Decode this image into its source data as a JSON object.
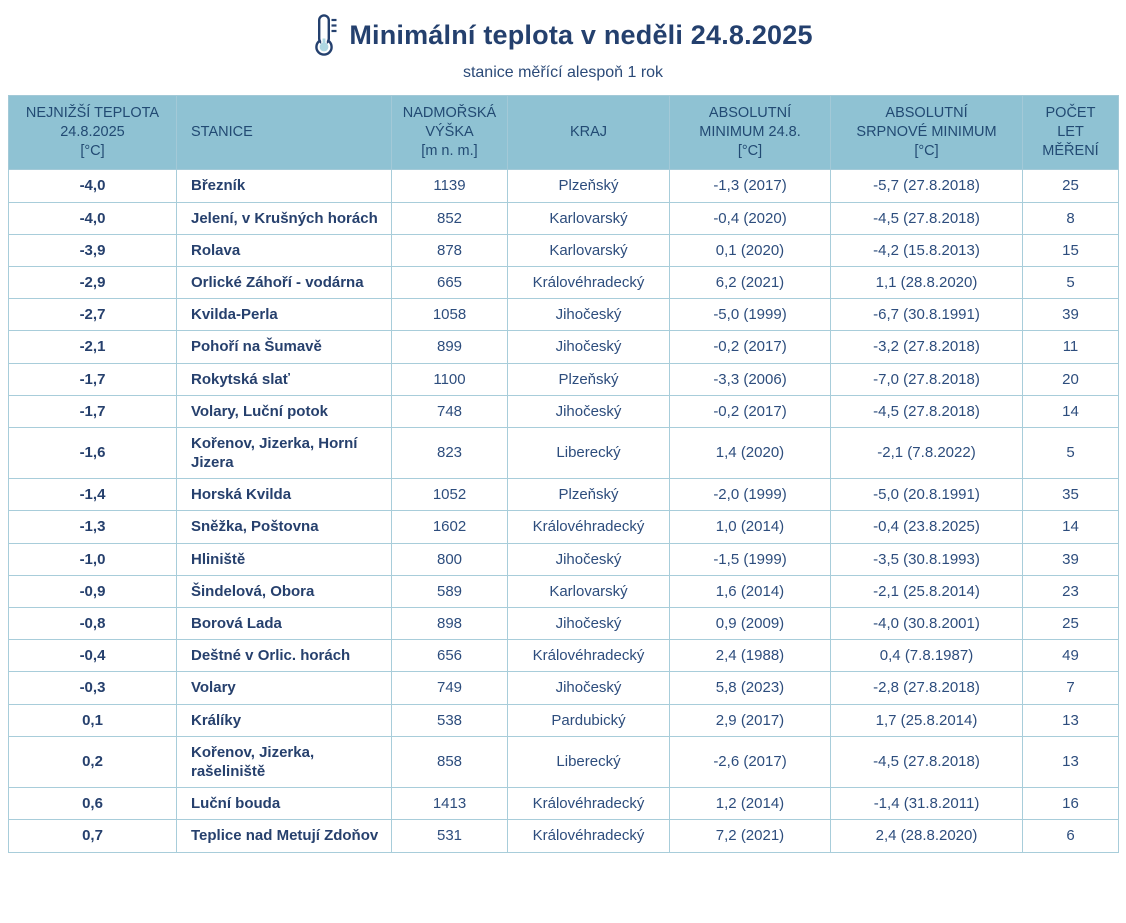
{
  "page": {
    "title": "Minimální teplota v neděli 24.8.2025",
    "subtitle": "stanice měřící alespoň 1 rok",
    "icon": "thermometer-icon"
  },
  "colors": {
    "title_text": "#24406e",
    "header_background": "#8fc2d3",
    "header_text": "#224a73",
    "cell_text": "#2d4d7d",
    "bold_cell_text": "#26406d",
    "table_border": "#a8cdda",
    "thermometer_bulb": "#aed7e2"
  },
  "chart_data": {
    "type": "table",
    "title": "Minimální teplota v neděli 24.8.2025",
    "subtitle": "stanice měřící alespoň 1 rok",
    "columns": [
      "NEJNIŽŠÍ TEPLOTA\n24.8.2025\n[°C]",
      "STANICE",
      "NADMOŘSKÁ\nVÝŠKA\n[m n. m.]",
      "KRAJ",
      "ABSOLUTNÍ\nMINIMUM 24.8.\n[°C]",
      "ABSOLUTNÍ\nSRPNOVÉ MINIMUM\n[°C]",
      "POČET\nLET\nMĚŘENÍ"
    ],
    "rows": [
      {
        "temp": "-4,0",
        "station": "Březník",
        "altitude": "1139",
        "region": "Plzeňský",
        "abs_min_248": "-1,3 (2017)",
        "abs_aug_min": "-5,7 (27.8.2018)",
        "years": "25"
      },
      {
        "temp": "-4,0",
        "station": "Jelení, v Krušných horách",
        "altitude": "852",
        "region": "Karlovarský",
        "abs_min_248": "-0,4 (2020)",
        "abs_aug_min": "-4,5 (27.8.2018)",
        "years": "8"
      },
      {
        "temp": "-3,9",
        "station": "Rolava",
        "altitude": "878",
        "region": "Karlovarský",
        "abs_min_248": "0,1 (2020)",
        "abs_aug_min": "-4,2 (15.8.2013)",
        "years": "15"
      },
      {
        "temp": "-2,9",
        "station": "Orlické Záhoří - vodárna",
        "altitude": "665",
        "region": "Královéhradecký",
        "abs_min_248": "6,2 (2021)",
        "abs_aug_min": "1,1 (28.8.2020)",
        "years": "5"
      },
      {
        "temp": "-2,7",
        "station": "Kvilda-Perla",
        "altitude": "1058",
        "region": "Jihočeský",
        "abs_min_248": "-5,0 (1999)",
        "abs_aug_min": "-6,7 (30.8.1991)",
        "years": "39"
      },
      {
        "temp": "-2,1",
        "station": "Pohoří na Šumavě",
        "altitude": "899",
        "region": "Jihočeský",
        "abs_min_248": "-0,2 (2017)",
        "abs_aug_min": "-3,2 (27.8.2018)",
        "years": "11"
      },
      {
        "temp": "-1,7",
        "station": "Rokytská slať",
        "altitude": "1100",
        "region": "Plzeňský",
        "abs_min_248": "-3,3 (2006)",
        "abs_aug_min": "-7,0 (27.8.2018)",
        "years": "20"
      },
      {
        "temp": "-1,7",
        "station": "Volary, Luční potok",
        "altitude": "748",
        "region": "Jihočeský",
        "abs_min_248": "-0,2 (2017)",
        "abs_aug_min": "-4,5 (27.8.2018)",
        "years": "14"
      },
      {
        "temp": "-1,6",
        "station": "Kořenov, Jizerka, Horní Jizera",
        "altitude": "823",
        "region": "Liberecký",
        "abs_min_248": "1,4 (2020)",
        "abs_aug_min": "-2,1 (7.8.2022)",
        "years": "5"
      },
      {
        "temp": "-1,4",
        "station": "Horská Kvilda",
        "altitude": "1052",
        "region": "Plzeňský",
        "abs_min_248": "-2,0 (1999)",
        "abs_aug_min": "-5,0 (20.8.1991)",
        "years": "35"
      },
      {
        "temp": "-1,3",
        "station": "Sněžka, Poštovna",
        "altitude": "1602",
        "region": "Královéhradecký",
        "abs_min_248": "1,0 (2014)",
        "abs_aug_min": "-0,4 (23.8.2025)",
        "years": "14"
      },
      {
        "temp": "-1,0",
        "station": "Hliniště",
        "altitude": "800",
        "region": "Jihočeský",
        "abs_min_248": "-1,5 (1999)",
        "abs_aug_min": "-3,5 (30.8.1993)",
        "years": "39"
      },
      {
        "temp": "-0,9",
        "station": "Šindelová, Obora",
        "altitude": "589",
        "region": "Karlovarský",
        "abs_min_248": "1,6 (2014)",
        "abs_aug_min": "-2,1 (25.8.2014)",
        "years": "23"
      },
      {
        "temp": "-0,8",
        "station": "Borová Lada",
        "altitude": "898",
        "region": "Jihočeský",
        "abs_min_248": "0,9 (2009)",
        "abs_aug_min": "-4,0 (30.8.2001)",
        "years": "25"
      },
      {
        "temp": "-0,4",
        "station": "Deštné v Orlic. horách",
        "altitude": "656",
        "region": "Královéhradecký",
        "abs_min_248": "2,4 (1988)",
        "abs_aug_min": "0,4 (7.8.1987)",
        "years": "49"
      },
      {
        "temp": "-0,3",
        "station": "Volary",
        "altitude": "749",
        "region": "Jihočeský",
        "abs_min_248": "5,8 (2023)",
        "abs_aug_min": "-2,8 (27.8.2018)",
        "years": "7"
      },
      {
        "temp": "0,1",
        "station": "Králíky",
        "altitude": "538",
        "region": "Pardubický",
        "abs_min_248": "2,9 (2017)",
        "abs_aug_min": "1,7 (25.8.2014)",
        "years": "13"
      },
      {
        "temp": "0,2",
        "station": "Kořenov, Jizerka, rašeliniště",
        "altitude": "858",
        "region": "Liberecký",
        "abs_min_248": "-2,6 (2017)",
        "abs_aug_min": "-4,5 (27.8.2018)",
        "years": "13"
      },
      {
        "temp": "0,6",
        "station": "Luční bouda",
        "altitude": "1413",
        "region": "Královéhradecký",
        "abs_min_248": "1,2 (2014)",
        "abs_aug_min": "-1,4 (31.8.2011)",
        "years": "16"
      },
      {
        "temp": "0,7",
        "station": "Teplice nad Metují Zdoňov",
        "altitude": "531",
        "region": "Královéhradecký",
        "abs_min_248": "7,2 (2021)",
        "abs_aug_min": "2,4 (28.8.2020)",
        "years": "6"
      }
    ]
  }
}
